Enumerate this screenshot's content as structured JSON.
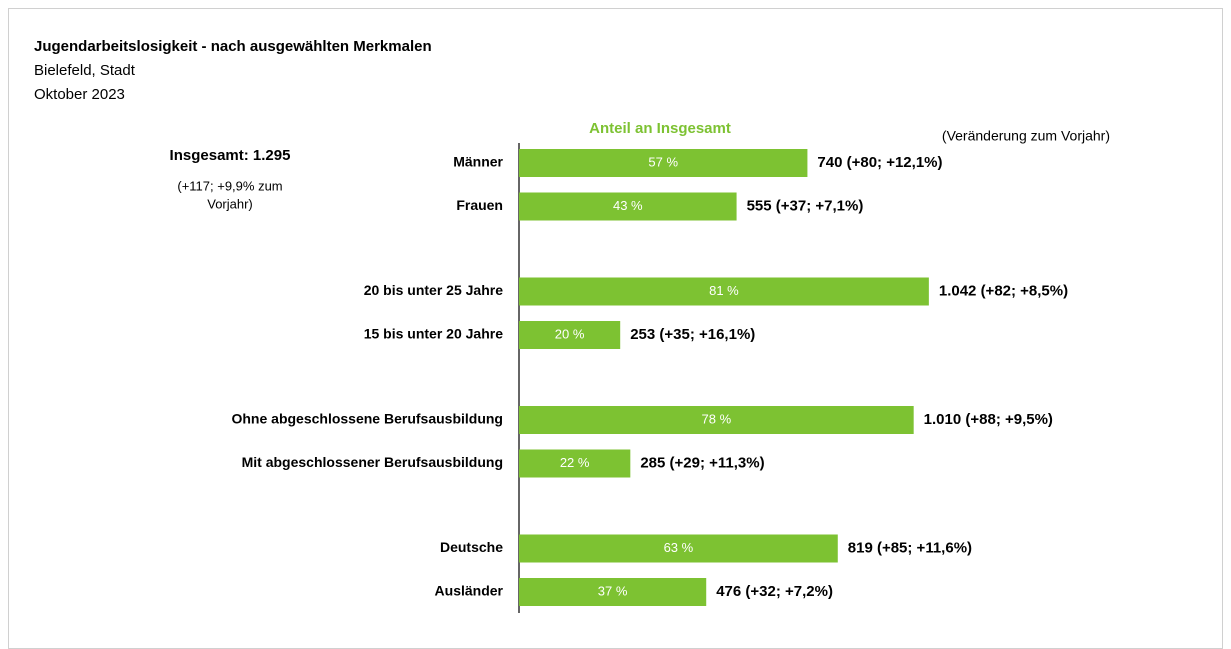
{
  "chart_data": {
    "type": "barh",
    "title": "Jugendarbeitslosigkeit - nach ausgewählten Merkmalen",
    "subtitle": [
      "Bielefeld, Stadt",
      "Oktober 2023"
    ],
    "axis_title": "Anteil an Insgesamt",
    "side_title": "(Veränderung zum Vorjahr)",
    "total": {
      "label": "Insgesamt: 1.295",
      "note": [
        "(+117; +9,9% zum",
        "Vorjahr)"
      ]
    },
    "categories": [
      "Männer",
      "Frauen",
      "20 bis unter 25 Jahre",
      "15 bis unter 20 Jahre",
      "Ohne abgeschlossene Berufsausbildung",
      "Mit abgeschlossener Berufsausbildung",
      "Deutsche",
      "Ausländer"
    ],
    "values": [
      57,
      43,
      81,
      20,
      78,
      22,
      63,
      37
    ],
    "value_labels": [
      "57 %",
      "43 %",
      "81 %",
      "20 %",
      "78 %",
      "22 %",
      "63 %",
      "37 %"
    ],
    "side_labels": [
      "740 (+80; +12,1%)",
      "555 (+37; +7,1%)",
      "1.042 (+82; +8,5%)",
      "253 (+35; +16,1%)",
      "1.010 (+88; +9,5%)",
      "285 (+29; +11,3%)",
      "819 (+85; +11,6%)",
      "476 (+32; +7,2%)"
    ],
    "color": "#7dc232",
    "xlim": [
      0,
      100
    ]
  }
}
